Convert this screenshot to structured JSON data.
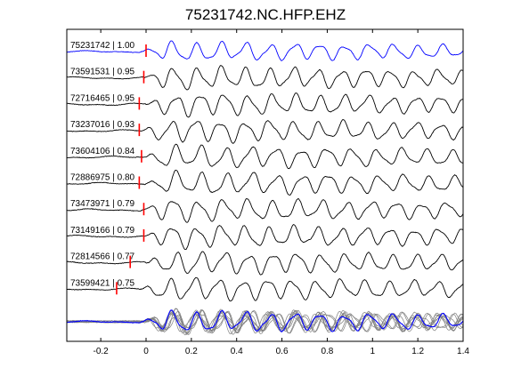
{
  "chart_data": {
    "type": "line",
    "title": "75231742.NC.HFP.EHZ",
    "xlabel": "",
    "ylabel": "",
    "xlim": [
      -0.35,
      1.4
    ],
    "x_ticks": [
      -0.2,
      0,
      0.2,
      0.4,
      0.6,
      0.8,
      1,
      1.2,
      1.4
    ],
    "x_tick_labels": [
      "-0.2",
      "0",
      "0.2",
      "0.4",
      "0.6",
      "0.8",
      "1",
      "1.2",
      "1.4"
    ],
    "grid": false,
    "colors": {
      "reference_trace": "#0000ff",
      "matched_trace": "#000000",
      "pick_marker": "#ff0000",
      "stack_overlay": "#808080"
    },
    "traces": [
      {
        "event_id": "75231742",
        "cc": "1.00",
        "label": "75231742 | 1.00",
        "pick_time": 0.0,
        "reference": true
      },
      {
        "event_id": "73591531",
        "cc": "0.95",
        "label": "73591531 | 0.95",
        "pick_time": -0.01,
        "reference": false
      },
      {
        "event_id": "72716465",
        "cc": "0.95",
        "label": "72716465 | 0.95",
        "pick_time": -0.03,
        "reference": false
      },
      {
        "event_id": "73237016",
        "cc": "0.93",
        "label": "73237016 | 0.93",
        "pick_time": -0.03,
        "reference": false
      },
      {
        "event_id": "73604106",
        "cc": "0.84",
        "label": "73604106 | 0.84",
        "pick_time": -0.02,
        "reference": false
      },
      {
        "event_id": "72886975",
        "cc": "0.80",
        "label": "72886975 | 0.80",
        "pick_time": -0.03,
        "reference": false
      },
      {
        "event_id": "73473971",
        "cc": "0.79",
        "label": "73473971 | 0.79",
        "pick_time": -0.01,
        "reference": false
      },
      {
        "event_id": "73149166",
        "cc": "0.79",
        "label": "73149166 | 0.79",
        "pick_time": -0.01,
        "reference": false
      },
      {
        "event_id": "72814566",
        "cc": "0.77",
        "label": "72814566 | 0.77",
        "pick_time": -0.07,
        "reference": false
      },
      {
        "event_id": "73599421",
        "cc": "0.75",
        "label": "73599421 | 0.75",
        "pick_time": -0.13,
        "reference": false
      }
    ],
    "stack_overlay": true
  }
}
